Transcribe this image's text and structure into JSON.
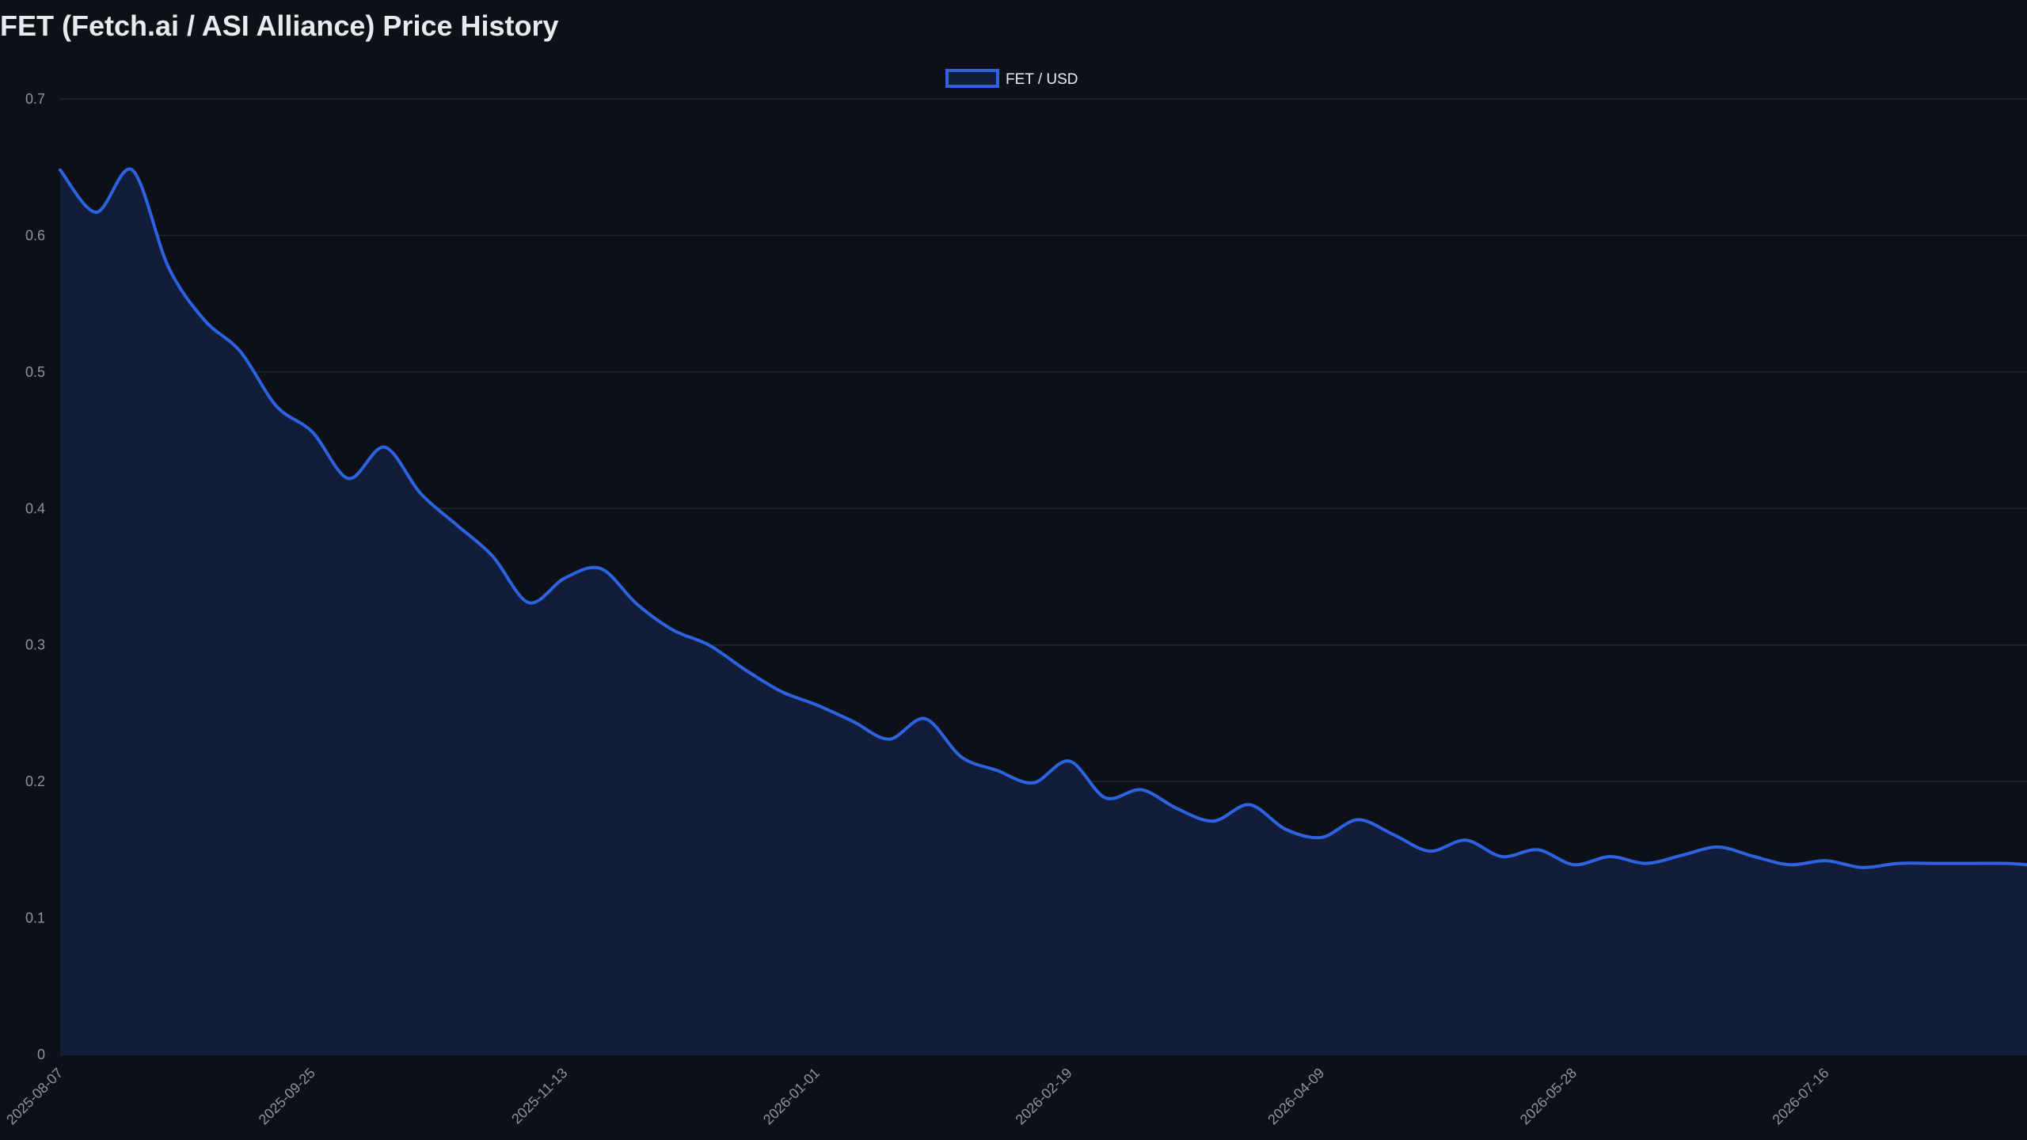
{
  "chart_data": {
    "type": "area",
    "title": "FET (Fetch.ai / ASI Alliance) Price History",
    "xlabel": "",
    "ylabel": "",
    "ylim": [
      0,
      0.7
    ],
    "y_ticks": [
      "0",
      "0.1",
      "0.2",
      "0.3",
      "0.4",
      "0.5",
      "0.6",
      "0.7"
    ],
    "x_ticks": [
      "2025-08-07",
      "2025-09-25",
      "2025-11-13",
      "2026-01-01",
      "2026-02-19",
      "2026-04-09",
      "2026-05-28",
      "2026-07-16"
    ],
    "x_range": [
      "2025-08-07",
      "2026-08-24"
    ],
    "grid": true,
    "legend_position": "top-center",
    "colors": {
      "line": "#2d62e0",
      "fill": "#111d3a",
      "grid": "#1f2633",
      "background": "#0d1117"
    },
    "series": [
      {
        "name": "FET / USD",
        "x": [
          "2025-08-07",
          "2025-08-14",
          "2025-08-21",
          "2025-08-28",
          "2025-09-04",
          "2025-09-11",
          "2025-09-18",
          "2025-09-25",
          "2025-10-02",
          "2025-10-09",
          "2025-10-16",
          "2025-10-23",
          "2025-10-30",
          "2025-11-06",
          "2025-11-13",
          "2025-11-20",
          "2025-11-27",
          "2025-12-04",
          "2025-12-11",
          "2025-12-18",
          "2025-12-25",
          "2026-01-01",
          "2026-01-08",
          "2026-01-15",
          "2026-01-22",
          "2026-01-29",
          "2026-02-05",
          "2026-02-12",
          "2026-02-19",
          "2026-02-26",
          "2026-03-05",
          "2026-03-12",
          "2026-03-19",
          "2026-03-26",
          "2026-04-02",
          "2026-04-09",
          "2026-04-16",
          "2026-04-23",
          "2026-04-30",
          "2026-05-07",
          "2026-05-14",
          "2026-05-21",
          "2026-05-28",
          "2026-06-04",
          "2026-06-11",
          "2026-06-18",
          "2026-06-25",
          "2026-07-02",
          "2026-07-09",
          "2026-07-16",
          "2026-07-23",
          "2026-07-30",
          "2026-08-06",
          "2026-08-13",
          "2026-08-20",
          "2026-08-24"
        ],
        "values": [
          0.648,
          0.617,
          0.648,
          0.577,
          0.538,
          0.515,
          0.475,
          0.456,
          0.422,
          0.445,
          0.411,
          0.388,
          0.365,
          0.331,
          0.349,
          0.356,
          0.33,
          0.311,
          0.3,
          0.282,
          0.266,
          0.256,
          0.244,
          0.231,
          0.246,
          0.218,
          0.208,
          0.199,
          0.215,
          0.188,
          0.194,
          0.18,
          0.171,
          0.183,
          0.165,
          0.159,
          0.172,
          0.161,
          0.149,
          0.157,
          0.145,
          0.15,
          0.139,
          0.145,
          0.14,
          0.146,
          0.152,
          0.145,
          0.139,
          0.142,
          0.137,
          0.14,
          0.14,
          0.14,
          0.14,
          0.139
        ]
      }
    ]
  }
}
